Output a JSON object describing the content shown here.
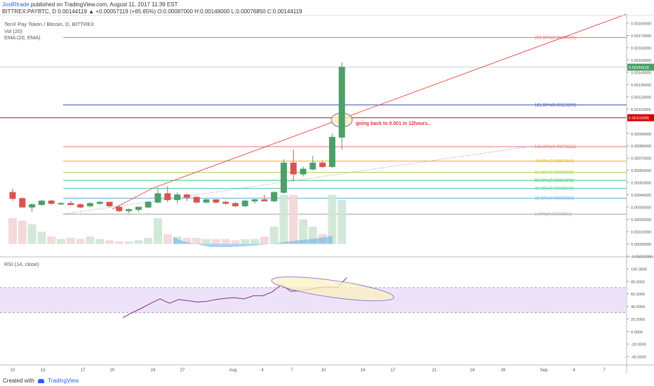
{
  "header": {
    "author": "JostRtrade",
    "published": "published on TradingView.com, August 11, 2017 11:39 EST",
    "ticker_line": "BITTREX:PAYBTC, D 0.00144119 ▲ +0.00057119 (+65.65%) O:0.00087000 H:0.00148000 L:0.00076850 C:0.00144119"
  },
  "legend": {
    "symbol": "TenX Pay Token / Bitcoin, D, BITTREX",
    "vol": "Vol (20)",
    "ema": "EMA (20, EMA)",
    "rsi": "RSI (14, close)"
  },
  "annotation": "going back to 0.001 in 12hours..",
  "price_labels": {
    "last": "0.00144119",
    "line": "0.00102905"
  },
  "colors": {
    "up": "#4f9e6a",
    "down": "#d9534f",
    "trend": "#e54545",
    "rsi": "#8b2a8b",
    "rsi_band": "#e9dcf7",
    "ellipse": "#6a5acd",
    "fib": [
      "#9e9e9e",
      "#5dade2",
      "#48c9b0",
      "#2ecc71",
      "#a9cf54",
      "#e6b422",
      "#e57373",
      "#3f51b5",
      "#e57373"
    ]
  },
  "chart_data": {
    "type": "candlestick",
    "price_ticks": [
      "0.00180000",
      "0.00170000",
      "0.00160000",
      "0.00150000",
      "0.00140000",
      "0.00130000",
      "0.00120000",
      "0.00110000",
      "0.00090000",
      "0.00080000",
      "0.00070000",
      "0.00060000",
      "0.00050000",
      "0.00040000",
      "0.00030000",
      "0.00020000",
      "0.00010000",
      "0.00000000",
      "-0.00010000"
    ],
    "rsi_ticks": [
      "100.0000",
      "80.0000",
      "60.0000",
      "40.0000",
      "20.0000",
      "0.0000",
      "-20.0000",
      "-40.0000"
    ],
    "date_ticks": [
      "10",
      "13",
      "17",
      "20",
      "24",
      "27",
      "Aug",
      "4",
      "7",
      "10",
      "14",
      "17",
      "21",
      "24",
      "28",
      "Sep",
      "4",
      "7"
    ],
    "fib": [
      {
        "label": "0.00%(0.00024301)",
        "value": 0.00024301
      },
      {
        "label": "23.60%(0.00037283)",
        "value": 0.00037283
      },
      {
        "label": "38.20%(0.00045315)",
        "value": 0.00045315
      },
      {
        "label": "50.00%(0.00051806)",
        "value": 0.00051806
      },
      {
        "label": "61.80%(0.00058298)",
        "value": 0.00058298
      },
      {
        "label": "78.60%(0.00067540)",
        "value": 0.0006754
      },
      {
        "label": "100.00%(0.00079312)",
        "value": 0.00079312
      },
      {
        "label": "161.80%(0.00113309)",
        "value": 0.00113309
      },
      {
        "label": "261.80%(0.00168321)",
        "value": 0.00168321
      }
    ],
    "candles": [
      {
        "o": 0.00042,
        "h": 0.00045,
        "l": 0.00035,
        "c": 0.00037
      },
      {
        "o": 0.00037,
        "h": 0.00038,
        "l": 0.0003,
        "c": 0.0003
      },
      {
        "o": 0.0003,
        "h": 0.00033,
        "l": 0.00026,
        "c": 0.00032
      },
      {
        "o": 0.00032,
        "h": 0.00036,
        "l": 0.00031,
        "c": 0.00035
      },
      {
        "o": 0.00035,
        "h": 0.00036,
        "l": 0.00032,
        "c": 0.00033
      },
      {
        "o": 0.00033,
        "h": 0.00034,
        "l": 0.00032,
        "c": 0.00033
      },
      {
        "o": 0.00033,
        "h": 0.00035,
        "l": 0.00032,
        "c": 0.00032
      },
      {
        "o": 0.00032,
        "h": 0.00033,
        "l": 0.00029,
        "c": 0.0003
      },
      {
        "o": 0.00031,
        "h": 0.00034,
        "l": 0.0003,
        "c": 0.00033
      },
      {
        "o": 0.00033,
        "h": 0.00035,
        "l": 0.00032,
        "c": 0.00034
      },
      {
        "o": 0.00034,
        "h": 0.00034,
        "l": 0.0003,
        "c": 0.00031
      },
      {
        "o": 0.0003,
        "h": 0.00031,
        "l": 0.00026,
        "c": 0.00027
      },
      {
        "o": 0.00027,
        "h": 0.00029,
        "l": 0.00025,
        "c": 0.00028
      },
      {
        "o": 0.00028,
        "h": 0.0003,
        "l": 0.00026,
        "c": 0.0003
      },
      {
        "o": 0.0003,
        "h": 0.00035,
        "l": 0.00029,
        "c": 0.00034
      },
      {
        "o": 0.00034,
        "h": 0.00046,
        "l": 0.00033,
        "c": 0.00041
      },
      {
        "o": 0.00041,
        "h": 0.00047,
        "l": 0.00034,
        "c": 0.00036
      },
      {
        "o": 0.00036,
        "h": 0.00042,
        "l": 0.00033,
        "c": 0.0004
      },
      {
        "o": 0.0004,
        "h": 0.00041,
        "l": 0.00035,
        "c": 0.00038
      },
      {
        "o": 0.00038,
        "h": 0.00039,
        "l": 0.00033,
        "c": 0.00034
      },
      {
        "o": 0.00034,
        "h": 0.00037,
        "l": 0.00033,
        "c": 0.00036
      },
      {
        "o": 0.00036,
        "h": 0.00036,
        "l": 0.00033,
        "c": 0.00034
      },
      {
        "o": 0.00034,
        "h": 0.00035,
        "l": 0.00032,
        "c": 0.00033
      },
      {
        "o": 0.00033,
        "h": 0.00034,
        "l": 0.0003,
        "c": 0.00031
      },
      {
        "o": 0.00031,
        "h": 0.00036,
        "l": 0.0003,
        "c": 0.00035
      },
      {
        "o": 0.00035,
        "h": 0.00037,
        "l": 0.00033,
        "c": 0.00036
      },
      {
        "o": 0.00036,
        "h": 0.0004,
        "l": 0.00035,
        "c": 0.00035
      },
      {
        "o": 0.00035,
        "h": 0.00043,
        "l": 0.00034,
        "c": 0.00042
      },
      {
        "o": 0.00042,
        "h": 0.00069,
        "l": 0.00041,
        "c": 0.00066
      },
      {
        "o": 0.00066,
        "h": 0.00077,
        "l": 0.00051,
        "c": 0.00057
      },
      {
        "o": 0.00057,
        "h": 0.00063,
        "l": 0.00055,
        "c": 0.00061
      },
      {
        "o": 0.00061,
        "h": 0.00072,
        "l": 0.0006,
        "c": 0.00066
      },
      {
        "o": 0.00066,
        "h": 0.00068,
        "l": 0.00062,
        "c": 0.00063
      },
      {
        "o": 0.00063,
        "h": 0.0009,
        "l": 0.00062,
        "c": 0.00087
      },
      {
        "o": 0.00087,
        "h": 0.00148,
        "l": 0.00077,
        "c": 0.00144119
      }
    ],
    "volume": [
      0.00021,
      0.00019,
      0.00016,
      0.0001,
      6e-05,
      4e-05,
      5e-05,
      4e-05,
      6e-05,
      4e-05,
      3e-05,
      2e-05,
      2e-05,
      3e-05,
      5e-05,
      0.00021,
      8e-05,
      6e-05,
      5e-05,
      5e-05,
      4e-05,
      4e-05,
      4e-05,
      3e-05,
      4e-05,
      4e-05,
      6e-05,
      0.00014,
      0.0004,
      0.0004,
      0.0002,
      0.00014,
      8e-05,
      0.0004,
      0.00036
    ],
    "rsi": [
      22,
      30,
      37,
      45,
      52,
      45,
      51,
      49,
      47,
      48,
      51,
      53,
      54,
      52,
      57,
      57,
      63,
      75,
      64,
      65,
      67,
      70,
      71,
      70,
      86
    ]
  }
}
